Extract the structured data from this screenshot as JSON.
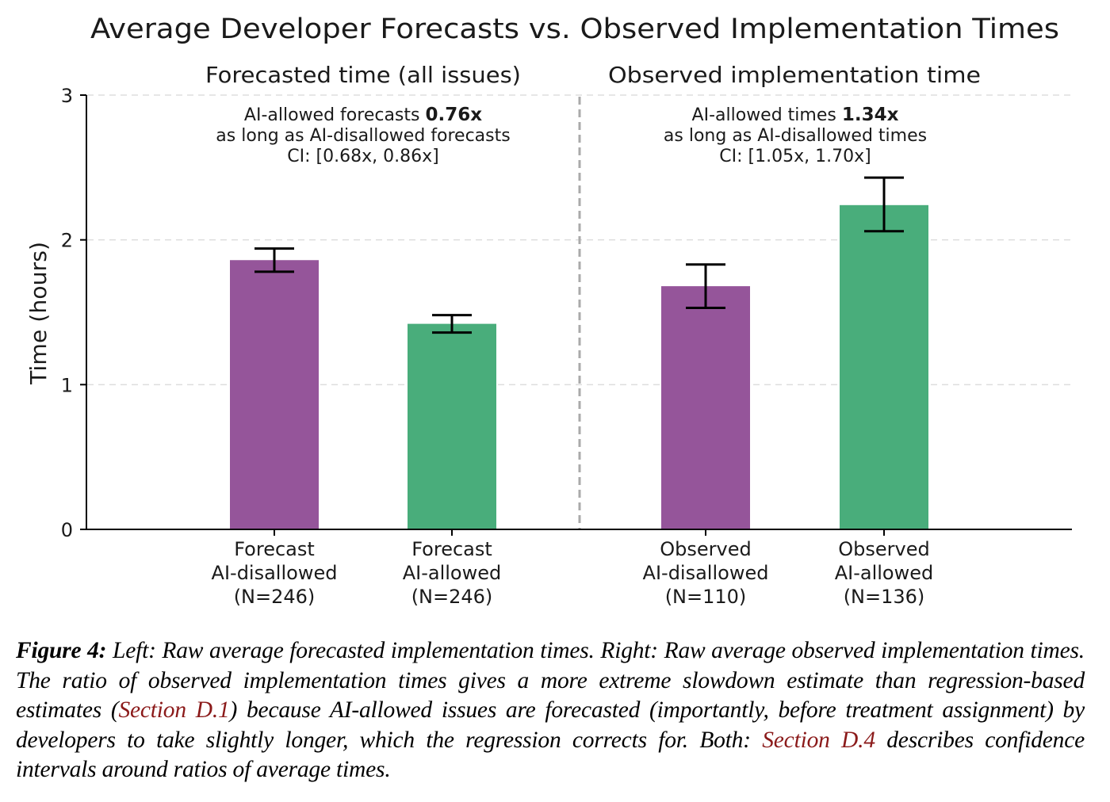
{
  "chart_data": {
    "type": "bar",
    "title": "Average Developer Forecasts vs. Observed Implementation Times",
    "ylabel": "Time (hours)",
    "ylim": [
      0,
      3
    ],
    "yticks": [
      0,
      1,
      2,
      3
    ],
    "grid": "horizontal dashed",
    "colors": {
      "ai_disallowed": "#95559a",
      "ai_allowed": "#49ad7b",
      "divider": "#aaaaaa"
    },
    "panels": [
      {
        "title": "Forecasted time (all issues)",
        "annotation": {
          "line1_prefix": "AI-allowed forecasts ",
          "line1_value": "0.76x",
          "line2": "as long as AI-disallowed forecasts",
          "line3": "CI: [0.68x, 0.86x]"
        },
        "bars": [
          {
            "label": [
              "Forecast",
              "AI-disallowed",
              "(N=246)"
            ],
            "value": 1.86,
            "err_low": 1.78,
            "err_high": 1.94,
            "group": "ai_disallowed"
          },
          {
            "label": [
              "Forecast",
              "AI-allowed",
              "(N=246)"
            ],
            "value": 1.42,
            "err_low": 1.36,
            "err_high": 1.48,
            "group": "ai_allowed"
          }
        ]
      },
      {
        "title": "Observed implementation time",
        "annotation": {
          "line1_prefix": "AI-allowed times ",
          "line1_value": "1.34x",
          "line2": "as long as AI-disallowed times",
          "line3": "CI: [1.05x, 1.70x]"
        },
        "bars": [
          {
            "label": [
              "Observed",
              "AI-disallowed",
              "(N=110)"
            ],
            "value": 1.68,
            "err_low": 1.53,
            "err_high": 1.83,
            "group": "ai_disallowed"
          },
          {
            "label": [
              "Observed",
              "AI-allowed",
              "(N=136)"
            ],
            "value": 2.24,
            "err_low": 2.06,
            "err_high": 2.43,
            "group": "ai_allowed"
          }
        ]
      }
    ]
  },
  "caption": {
    "lead": "Figure 4:",
    "text1": " Left: Raw average forecasted implementation times. Right: Raw average observed implementation times. The ratio of observed implementation times gives a more extreme slowdown estimate than regression-based estimates (",
    "ref1": "Section D.1",
    "text2": ") because AI-allowed issues are forecasted (importantly, before treatment assignment) by developers to take slightly longer, which the regression corrects for. Both: ",
    "ref2": "Section D.4",
    "text3": " describes confidence intervals around ratios of average times."
  }
}
